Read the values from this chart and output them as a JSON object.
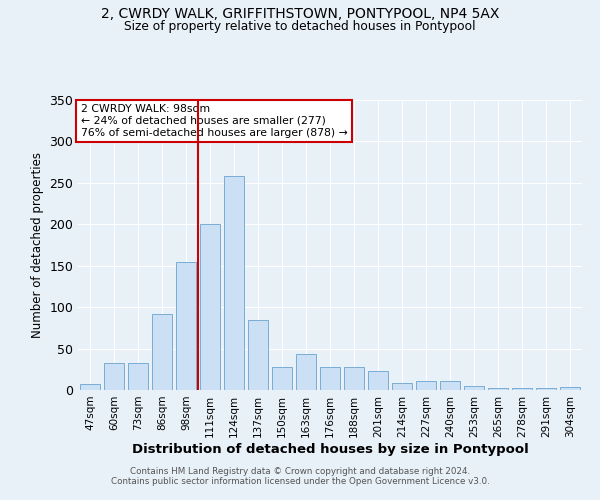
{
  "title": "2, CWRDY WALK, GRIFFITHSTOWN, PONTYPOOL, NP4 5AX",
  "subtitle": "Size of property relative to detached houses in Pontypool",
  "xlabel": "Distribution of detached houses by size in Pontypool",
  "ylabel": "Number of detached properties",
  "categories": [
    "47sqm",
    "60sqm",
    "73sqm",
    "86sqm",
    "98sqm",
    "111sqm",
    "124sqm",
    "137sqm",
    "150sqm",
    "163sqm",
    "176sqm",
    "188sqm",
    "201sqm",
    "214sqm",
    "227sqm",
    "240sqm",
    "253sqm",
    "265sqm",
    "278sqm",
    "291sqm",
    "304sqm"
  ],
  "values": [
    7,
    32,
    32,
    92,
    155,
    200,
    258,
    85,
    28,
    44,
    28,
    28,
    23,
    8,
    11,
    11,
    5,
    3,
    2,
    2,
    4
  ],
  "bar_color": "#cce0f5",
  "bar_edge_color": "#7aadd4",
  "marker_x": "98sqm",
  "marker_color": "#cc0000",
  "annotation_title": "2 CWRDY WALK: 98sqm",
  "annotation_line1": "← 24% of detached houses are smaller (277)",
  "annotation_line2": "76% of semi-detached houses are larger (878) →",
  "annotation_box_color": "#ffffff",
  "annotation_box_edge": "#cc0000",
  "ylim": [
    0,
    350
  ],
  "yticks": [
    0,
    50,
    100,
    150,
    200,
    250,
    300,
    350
  ],
  "bg_color": "#e8f0f8",
  "grid_color": "#ffffff",
  "footer1": "Contains HM Land Registry data © Crown copyright and database right 2024.",
  "footer2": "Contains public sector information licensed under the Open Government Licence v3.0."
}
